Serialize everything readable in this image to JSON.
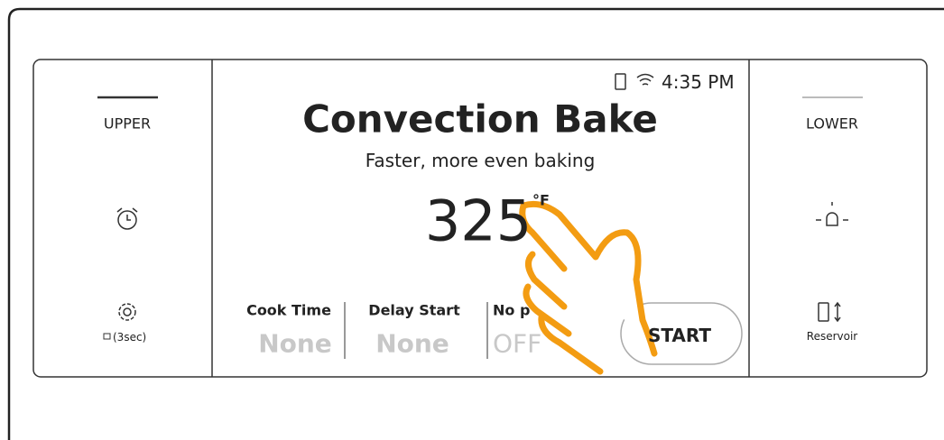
{
  "left_panel": {
    "label": "UPPER",
    "lock_label": "(3sec)"
  },
  "right_panel": {
    "label": "LOWER",
    "reservoir_label": "Reservoir"
  },
  "status": {
    "time": "4:35 PM"
  },
  "main": {
    "title": "Convection Bake",
    "subtitle": "Faster, more even baking",
    "temperature": 325,
    "unit": "°F"
  },
  "options": [
    {
      "label": "Cook Time",
      "value": "None"
    },
    {
      "label": "Delay Start",
      "value": "None"
    },
    {
      "label": "No p",
      "value": "OFF"
    }
  ],
  "button": "START"
}
